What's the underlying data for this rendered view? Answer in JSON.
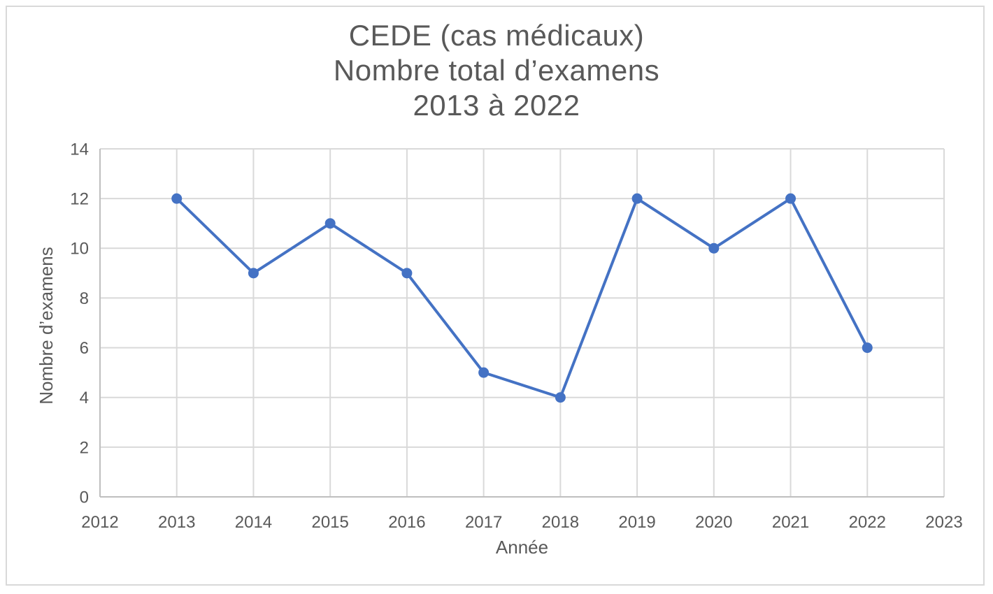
{
  "frame": {
    "background": "#ffffff",
    "border_color": "#d9d9d9"
  },
  "chart_data": {
    "type": "line",
    "title_lines": [
      "CEDE (cas médicaux)",
      "Nombre total d’examens",
      "2013 à 2022"
    ],
    "xlabel": "Année",
    "ylabel": "Nombre d’examens",
    "x": [
      2013,
      2014,
      2015,
      2016,
      2017,
      2018,
      2019,
      2020,
      2021,
      2022
    ],
    "series": [
      {
        "name": "Nombre total d’examens",
        "values": [
          12,
          9,
          11,
          9,
          5,
          4,
          12,
          10,
          12,
          6
        ]
      }
    ],
    "xlim": [
      2012,
      2023
    ],
    "ylim": [
      0,
      14
    ],
    "x_ticks": [
      2012,
      2013,
      2014,
      2015,
      2016,
      2017,
      2018,
      2019,
      2020,
      2021,
      2022,
      2023
    ],
    "y_ticks": [
      0,
      2,
      4,
      6,
      8,
      10,
      12,
      14
    ],
    "grid": true,
    "legend_position": "none",
    "marker": "circle",
    "colors": {
      "series": "#4472c4",
      "grid": "#d9d9d9",
      "axis": "#bfbfbf",
      "text": "#595959"
    }
  }
}
